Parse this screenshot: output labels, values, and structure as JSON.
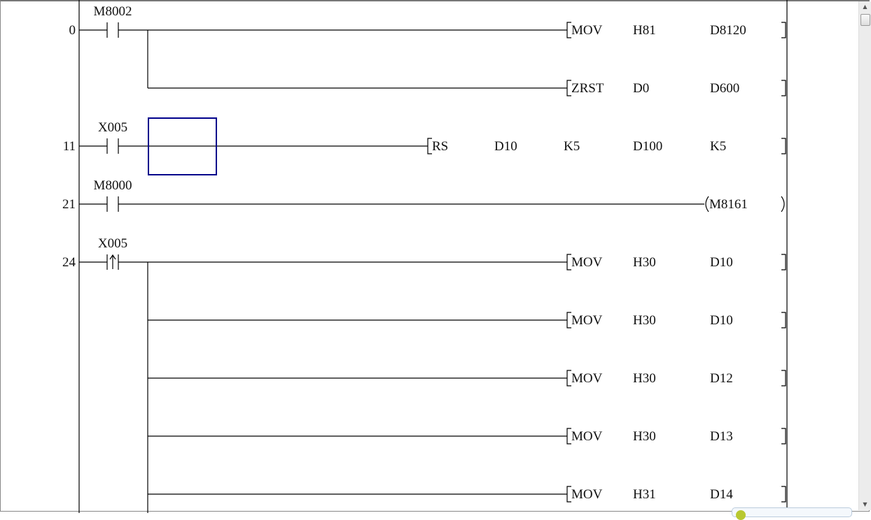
{
  "colors": {
    "line": "#000000",
    "cursor": "#00008b",
    "background": "#ffffff"
  },
  "cursor": {
    "row": 2,
    "column": 1
  },
  "rungs": [
    {
      "step": "0",
      "row": 0,
      "contact": {
        "label": "M8002",
        "type": "normally-open"
      },
      "outputs": [
        {
          "row": 0,
          "kind": "instruction",
          "cmd": "MOV",
          "operands": [
            "H81",
            "D8120"
          ]
        },
        {
          "row": 1,
          "kind": "instruction",
          "cmd": "ZRST",
          "operands": [
            "D0",
            "D600"
          ]
        }
      ]
    },
    {
      "step": "11",
      "row": 2,
      "contact": {
        "label": "X005",
        "type": "normally-open"
      },
      "outputs": [
        {
          "row": 2,
          "kind": "instruction",
          "cmd": "RS",
          "operands": [
            "D10",
            "K5",
            "D100",
            "K5"
          ]
        }
      ]
    },
    {
      "step": "21",
      "row": 3,
      "contact": {
        "label": "M8000",
        "type": "normally-open"
      },
      "outputs": [
        {
          "row": 3,
          "kind": "coil",
          "cmd": "M8161",
          "operands": []
        }
      ]
    },
    {
      "step": "24",
      "row": 4,
      "contact": {
        "label": "X005",
        "type": "rising-edge"
      },
      "outputs": [
        {
          "row": 4,
          "kind": "instruction",
          "cmd": "MOV",
          "operands": [
            "H30",
            "D10"
          ]
        },
        {
          "row": 5,
          "kind": "instruction",
          "cmd": "MOV",
          "operands": [
            "H30",
            "D10"
          ]
        },
        {
          "row": 6,
          "kind": "instruction",
          "cmd": "MOV",
          "operands": [
            "H30",
            "D12"
          ]
        },
        {
          "row": 7,
          "kind": "instruction",
          "cmd": "MOV",
          "operands": [
            "H30",
            "D13"
          ]
        },
        {
          "row": 8,
          "kind": "instruction",
          "cmd": "MOV",
          "operands": [
            "H31",
            "D14"
          ]
        }
      ],
      "continues": true
    }
  ]
}
